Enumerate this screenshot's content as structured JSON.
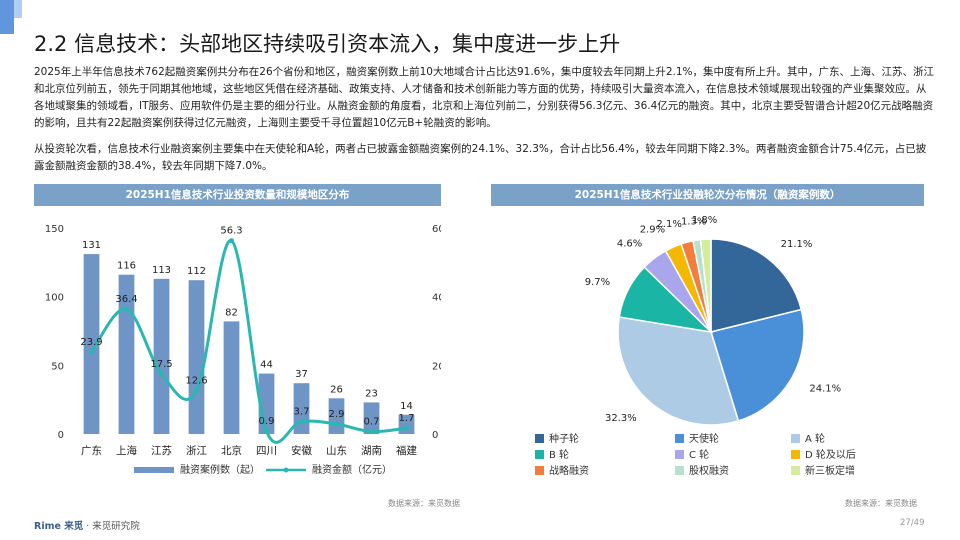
{
  "page": {
    "title": "2.2 信息技术：头部地区持续吸引资本流入，集中度进一步上升",
    "paragraph1": "2025年上半年信息技术762起融资案例共分布在26个省份和地区，融资案例数上前10大地域合计占比达91.6%，集中度较去年同期上升2.1%，集中度有所上升。其中，广东、上海、江苏、浙江和北京位列前五，领先于同期其他地域，这些地区凭借在经济基础、政策支持、人才储备和技术创新能力等方面的优势，持续吸引大量资本流入，在信息技术领域展现出较强的产业集聚效应。从各地域聚集的领域看，IT服务、应用软件仍是主要的细分行业。从融资金额的角度看，北京和上海位列前二，分别获得56.3亿元、36.4亿元的融资。其中，北京主要受智谱合计超20亿元战略融资的影响，且共有22起融资案例获得过亿元融资，上海则主要受千寻位置超10亿元B+轮融资的影响。",
    "paragraph2": "从投资轮次看，信息技术行业融资案例主要集中在天使轮和A轮，两者占已披露金额融资案例的24.1%、32.3%，合计占比56.4%，较去年同期下降2.3%。两者融资金额合计75.4亿元，占已披露金额融资金额的38.4%，较去年同期下降7.0%。",
    "source_left": "数据来源：来觅数据",
    "source_right": "数据来源：来觅数据",
    "footer_brand": "Rime 来觅",
    "footer_text": "· 来觅研究院",
    "page_number": "27/49",
    "colors": {
      "header_bg": "#7aa2c9",
      "bar": "#6f94c6",
      "line": "#2ab7b1"
    }
  },
  "chart_data": [
    {
      "type": "bar",
      "title": "2025H1信息技术行业投资数量和规模地区分布",
      "categories": [
        "广东",
        "上海",
        "江苏",
        "浙江",
        "北京",
        "四川",
        "安徽",
        "山东",
        "湖南",
        "福建"
      ],
      "series": [
        {
          "name": "融资案例数（起）",
          "type": "bar",
          "axis": "left",
          "values": [
            131,
            116,
            113,
            112,
            82,
            44,
            37,
            26,
            23,
            14
          ]
        },
        {
          "name": "融资金额（亿元）",
          "type": "line",
          "axis": "right",
          "values": [
            23.9,
            36.4,
            17.5,
            12.6,
            56.3,
            0.9,
            3.7,
            2.9,
            0.7,
            1.7
          ]
        }
      ],
      "ylim_left": [
        0,
        150
      ],
      "yticks_left": [
        "0",
        "50",
        "100",
        "150"
      ],
      "ylim_right": [
        0,
        60
      ],
      "yticks_right": [
        "0",
        "20",
        "40",
        "60"
      ],
      "grid": false,
      "legend": "bottom"
    },
    {
      "type": "pie",
      "title": "2025H1信息技术行业投融轮次分布情况（融资案例数）",
      "slices": [
        {
          "label": "种子轮",
          "value": 21.1,
          "text": "21.1%",
          "color": "#336699"
        },
        {
          "label": "天使轮",
          "value": 24.1,
          "text": "24.1%",
          "color": "#4a90d9"
        },
        {
          "label": "A 轮",
          "value": 32.3,
          "text": "32.3%",
          "color": "#aecbe6"
        },
        {
          "label": "B 轮",
          "value": 9.7,
          "text": "9.7%",
          "color": "#1bb5a5"
        },
        {
          "label": "C 轮",
          "value": 4.6,
          "text": "4.6%",
          "color": "#a9a6ee"
        },
        {
          "label": "D 轮及以后",
          "value": 2.9,
          "text": "2.9%",
          "color": "#f5b800"
        },
        {
          "label": "战略融资",
          "value": 2.1,
          "text": "2.1%",
          "color": "#f47c3c"
        },
        {
          "label": "股权融资",
          "value": 1.3,
          "text": "1.3%",
          "color": "#b8e0cf"
        },
        {
          "label": "新三板定增",
          "value": 1.8,
          "text": "1.8%",
          "color": "#d4ec9b"
        }
      ],
      "start": "top, clockwise",
      "legend": "bottom"
    }
  ]
}
